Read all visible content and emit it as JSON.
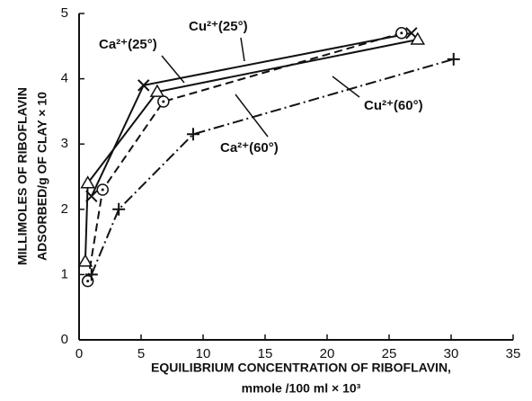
{
  "chart_data": {
    "type": "line",
    "x_label": [
      "EQUILIBRIUM CONCENTRATION OF RIBOFLAVIN,",
      "mmole /100 ml × 10³"
    ],
    "y_label": [
      "MILLIMOLES OF RIBOFLAVIN",
      "ADSORBED/g OF CLAY × 10"
    ],
    "xlim": [
      0,
      35
    ],
    "xticks": [
      0,
      5,
      10,
      15,
      20,
      25,
      30,
      35
    ],
    "ylim": [
      0,
      5
    ],
    "yticks": [
      0,
      1,
      2,
      3,
      4,
      5
    ],
    "series": [
      {
        "name": "Cu²⁺(25°)",
        "color": "#111111",
        "marker": "x",
        "dash": "solid",
        "x": [
          1,
          5.2,
          26.8
        ],
        "values": [
          2.2,
          3.9,
          4.7
        ]
      },
      {
        "name": "Ca²⁺(25°)",
        "color": "#111111",
        "marker": "triangle",
        "dash": "solid",
        "x": [
          0.5,
          0.7,
          6.3,
          27.3
        ],
        "values": [
          1.2,
          2.4,
          3.8,
          4.6
        ]
      },
      {
        "name": "Ca²⁺(60°)",
        "color": "#111111",
        "marker": "circle",
        "dash": "dashed",
        "x": [
          0.7,
          1.9,
          6.8,
          26
        ],
        "values": [
          0.9,
          2.3,
          3.65,
          4.7
        ]
      },
      {
        "name": "Cu²⁺(60°)",
        "color": "#111111",
        "marker": "plus",
        "dash": "dashdot",
        "x": [
          1,
          3.2,
          9.2,
          30.2
        ],
        "values": [
          1,
          2.0,
          3.15,
          4.3
        ]
      }
    ]
  }
}
